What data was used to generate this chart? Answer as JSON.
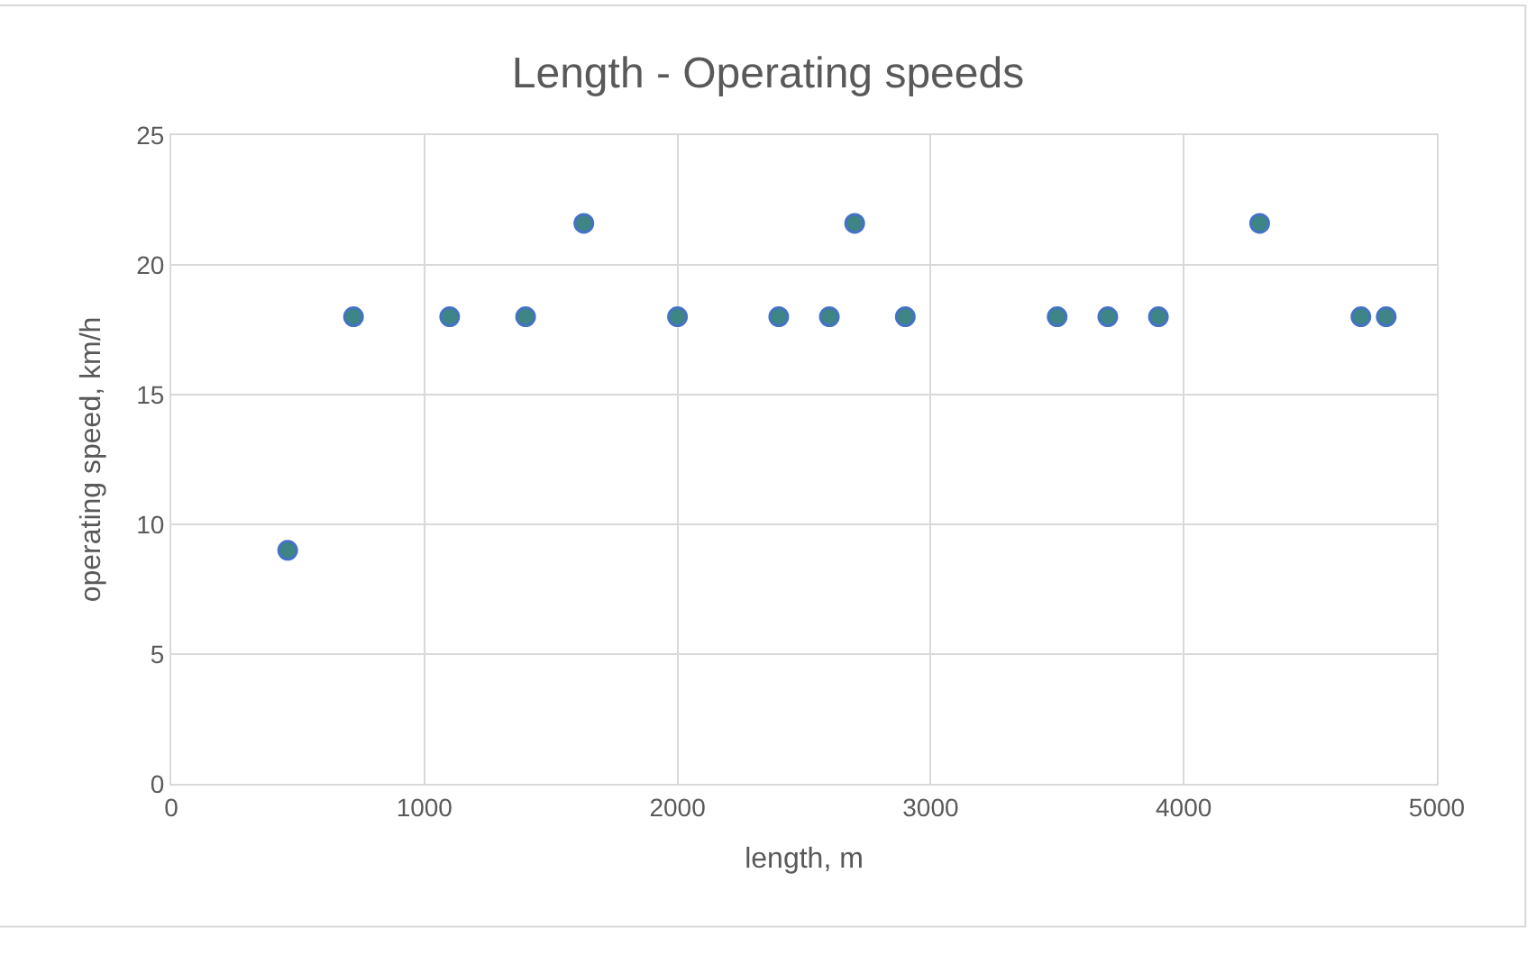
{
  "chart_data": {
    "type": "scatter",
    "title": "Length - Operating speeds",
    "xlabel": "length, m",
    "ylabel": "operating speed, km/h",
    "x": [
      460,
      720,
      1100,
      1400,
      1630,
      2000,
      2400,
      2600,
      2700,
      2900,
      3500,
      3700,
      3900,
      4300,
      4700,
      4800
    ],
    "series": [
      {
        "color": "#3e8585",
        "values": [
          9,
          18,
          18,
          18,
          21.6,
          18,
          18,
          18,
          21.6,
          18,
          18,
          18,
          18,
          21.6,
          18,
          18
        ]
      }
    ],
    "xlim": [
      0,
      5000
    ],
    "xticks": [
      0,
      1000,
      2000,
      3000,
      4000,
      5000
    ],
    "ylim": [
      0,
      25
    ],
    "yticks": [
      0,
      5,
      10,
      15,
      20,
      25
    ],
    "grid": true,
    "marker": "circle"
  }
}
